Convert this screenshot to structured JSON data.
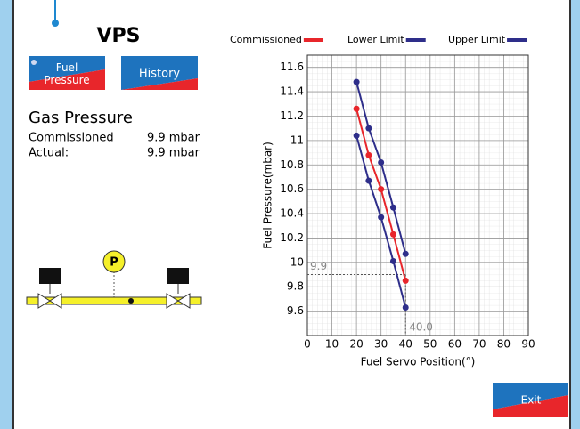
{
  "header": {
    "title": "VPS"
  },
  "buttons": {
    "fuel_pressure": "Fuel Pressure",
    "history": "History",
    "exit": "Exit"
  },
  "readout": {
    "title": "Gas Pressure",
    "rows": [
      [
        "Commissioned",
        "9.9 mbar"
      ],
      [
        "Actual:",
        "9.9 mbar"
      ]
    ]
  },
  "diagram": {
    "gauge_label": "P"
  },
  "chart_data": {
    "type": "line",
    "x": [
      20,
      25,
      30,
      35,
      40
    ],
    "series": [
      {
        "name": "Commissioned",
        "color": "#e8262b",
        "values": [
          11.26,
          10.88,
          10.6,
          10.23,
          9.85
        ]
      },
      {
        "name": "Lower Limit",
        "color": "#2e2e8a",
        "values": [
          11.04,
          10.67,
          10.37,
          10.01,
          9.63
        ]
      },
      {
        "name": "Upper Limit",
        "color": "#2e2e8a",
        "values": [
          11.48,
          11.1,
          10.82,
          10.45,
          10.07
        ]
      }
    ],
    "xlabel": "Fuel Servo Position(°)",
    "ylabel": "Fuel Pressure(mbar)",
    "xlim": [
      0,
      90
    ],
    "xticks": [
      0,
      10,
      20,
      30,
      40,
      50,
      60,
      70,
      80,
      90
    ],
    "ylim": [
      9.4,
      11.7
    ],
    "yticks": [
      9.6,
      9.8,
      10,
      10.2,
      10.4,
      10.6,
      10.8,
      11,
      11.2,
      11.4,
      11.6
    ],
    "grid": true,
    "legend": "top",
    "annotation": {
      "x": 40,
      "y": 9.9,
      "x_label": "40.0",
      "y_label": "9.9"
    }
  }
}
